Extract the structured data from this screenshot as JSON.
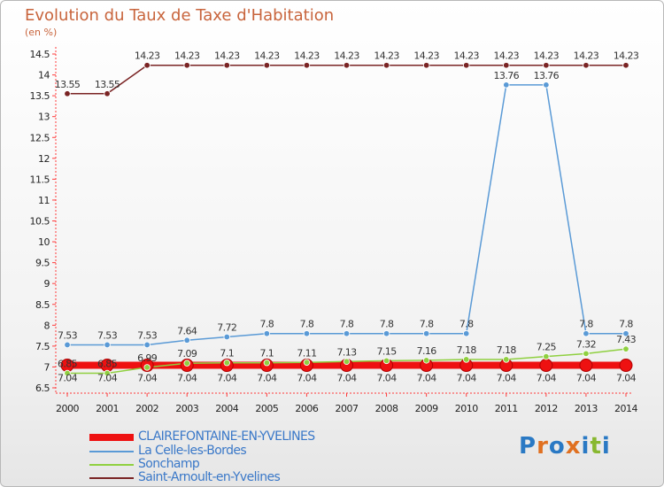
{
  "header": {
    "title": "Evolution du Taux de Taxe d'Habitation",
    "unit": "(en %)"
  },
  "logo": {
    "text": "Proxiti",
    "colors": [
      "#2a79c4",
      "#e07020",
      "#2a79c4",
      "#e07020",
      "#2a79c4",
      "#88b830",
      "#2a79c4"
    ]
  },
  "chart_data": {
    "type": "line",
    "title": "Evolution du Taux de Taxe d'Habitation",
    "ylabel": "(en %)",
    "xlabel": "",
    "x": [
      "2000",
      "2001",
      "2002",
      "2003",
      "2004",
      "2005",
      "2006",
      "2007",
      "2008",
      "2009",
      "2010",
      "2011",
      "2012",
      "2013",
      "2014"
    ],
    "ylim": [
      6.5,
      14.5
    ],
    "yticks": [
      "6.5",
      "7",
      "7.5",
      "8",
      "8.5",
      "9",
      "9.5",
      "10",
      "10.5",
      "11",
      "11.5",
      "12",
      "12.5",
      "13",
      "13.5",
      "14",
      "14.5"
    ],
    "grid": false,
    "legend_position": "bottom-left",
    "series": [
      {
        "name": "CLAIREFONTAINE-EN-YVELINES",
        "color": "#ee1111",
        "width": 8,
        "labelDy": 18,
        "values": [
          7.04,
          7.04,
          7.04,
          7.04,
          7.04,
          7.04,
          7.04,
          7.04,
          7.04,
          7.04,
          7.04,
          7.04,
          7.04,
          7.04,
          7.04
        ],
        "labels": [
          "7.04",
          "7.04",
          "7.04",
          "7.04",
          "7.04",
          "7.04",
          "7.04",
          "7.04",
          "7.04",
          "7.04",
          "7.04",
          "7.04",
          "7.04",
          "7.04",
          "7.04"
        ]
      },
      {
        "name": "La Celle-les-Bordes",
        "color": "#5a9ad6",
        "width": 1.5,
        "labelDy": -7,
        "values": [
          7.53,
          7.53,
          7.53,
          7.64,
          7.72,
          7.8,
          7.8,
          7.8,
          7.8,
          7.8,
          7.8,
          13.76,
          13.76,
          7.8,
          7.8
        ],
        "labels": [
          "7.53",
          "7.53",
          "7.53",
          "7.64",
          "7.72",
          "7.8",
          "7.8",
          "7.8",
          "7.8",
          "7.8",
          "7.8",
          "13.76",
          "13.76",
          "7.8",
          "7.8"
        ]
      },
      {
        "name": "Sonchamp",
        "color": "#8fd040",
        "width": 1.5,
        "labelDy": -7,
        "values": [
          6.85,
          6.85,
          6.99,
          7.09,
          7.1,
          7.1,
          7.11,
          7.13,
          7.15,
          7.16,
          7.18,
          7.18,
          7.25,
          7.32,
          7.43
        ],
        "labels": [
          "6.85",
          "6.85",
          "6.99",
          "7.09",
          "7.1",
          "7.1",
          "7.11",
          "7.13",
          "7.15",
          "7.16",
          "7.18",
          "7.18",
          "7.25",
          "7.32",
          "7.43"
        ]
      },
      {
        "name": "Saint-Arnoult-en-Yvelines",
        "color": "#7a2424",
        "width": 1.5,
        "labelDy": -7,
        "values": [
          13.55,
          13.55,
          14.23,
          14.23,
          14.23,
          14.23,
          14.23,
          14.23,
          14.23,
          14.23,
          14.23,
          14.23,
          14.23,
          14.23,
          14.23
        ],
        "labels": [
          "13.55",
          "13.55",
          "14.23",
          "14.23",
          "14.23",
          "14.23",
          "14.23",
          "14.23",
          "14.23",
          "14.23",
          "14.23",
          "14.23",
          "14.23",
          "14.23",
          "14.23"
        ]
      }
    ]
  }
}
